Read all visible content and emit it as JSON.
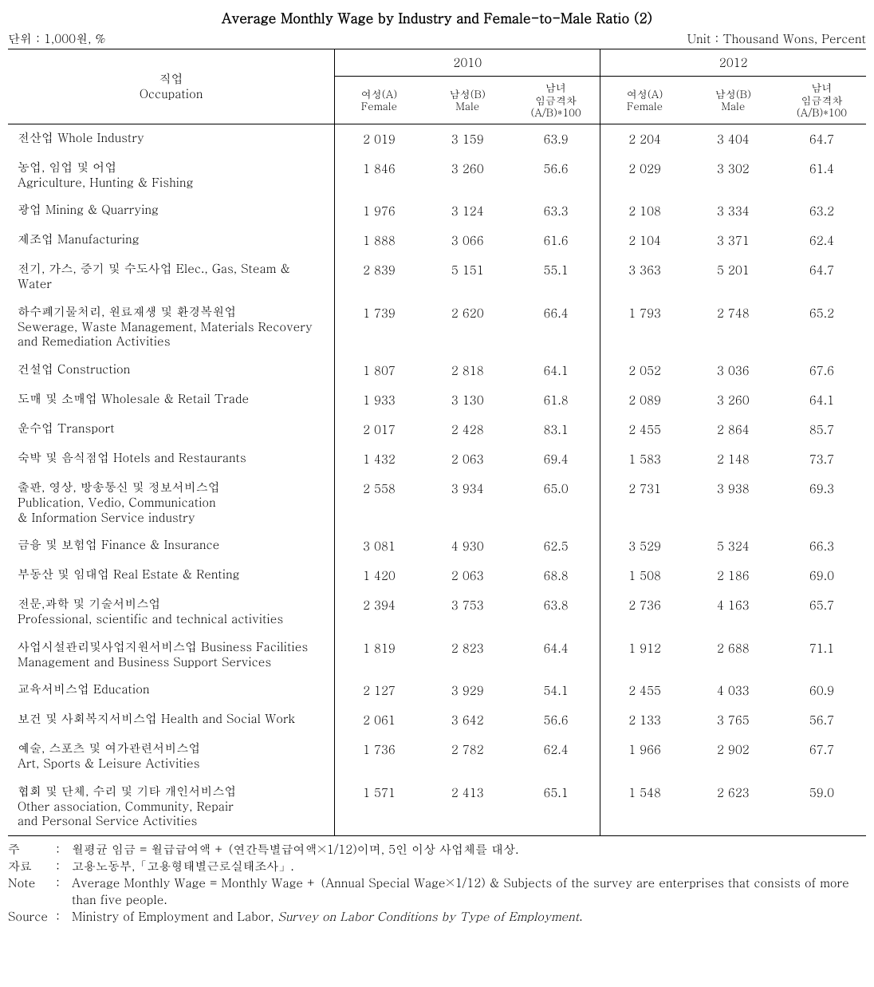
{
  "title": "Average Monthly Wage by Industry and Female-to-Male Ratio (2)",
  "unit_left": "단위 : 1,000원, %",
  "unit_right": "Unit : Thousand Wons, Percent",
  "header": {
    "occupation_ko": "직업",
    "occupation_en": "Occupation",
    "year_2010": "2010",
    "year_2012": "2012",
    "female_ko": "여성(A)",
    "female_en": "Female",
    "male_ko": "남성(B)",
    "male_en": "Male",
    "gap_ko1": "남녀",
    "gap_ko2": "임금격차",
    "gap_formula": "(A/B)*100"
  },
  "rows": [
    {
      "occ": "전산업  Whole Industry",
      "f10": "2 019",
      "m10": "3 159",
      "g10": "63.9",
      "f12": "2 204",
      "m12": "3 404",
      "g12": "64.7"
    },
    {
      "occ": "농업, 임업 및 어업\nAgriculture, Hunting & Fishing",
      "f10": "1 846",
      "m10": "3 260",
      "g10": "56.6",
      "f12": "2 029",
      "m12": "3 302",
      "g12": "61.4"
    },
    {
      "occ": "광업  Mining & Quarrying",
      "f10": "1 976",
      "m10": "3 124",
      "g10": "63.3",
      "f12": "2 108",
      "m12": "3 334",
      "g12": "63.2"
    },
    {
      "occ": "제조업  Manufacturing",
      "f10": "1 888",
      "m10": "3 066",
      "g10": "61.6",
      "f12": "2 104",
      "m12": "3 371",
      "g12": "62.4"
    },
    {
      "occ": "전기, 가스, 증기 및 수도사업 Elec., Gas, Steam & Water",
      "f10": "2 839",
      "m10": "5 151",
      "g10": "55.1",
      "f12": "3 363",
      "m12": "5 201",
      "g12": "64.7"
    },
    {
      "occ": "하수폐기물처리, 원료재생 및 환경복원업\nSewerage, Waste Management, Materials Recovery\nand Remediation Activities",
      "f10": "1 739",
      "m10": "2 620",
      "g10": "66.4",
      "f12": "1 793",
      "m12": "2 748",
      "g12": "65.2"
    },
    {
      "occ": "건설업  Construction",
      "f10": "1 807",
      "m10": "2 818",
      "g10": "64.1",
      "f12": "2 052",
      "m12": "3 036",
      "g12": "67.6"
    },
    {
      "occ": "도매 및 소매업  Wholesale & Retail Trade",
      "f10": "1 933",
      "m10": "3 130",
      "g10": "61.8",
      "f12": "2 089",
      "m12": "3 260",
      "g12": "64.1"
    },
    {
      "occ": "운수업  Transport",
      "f10": "2 017",
      "m10": "2 428",
      "g10": "83.1",
      "f12": "2 455",
      "m12": "2 864",
      "g12": "85.7"
    },
    {
      "occ": "숙박 및 음식점업 Hotels and Restaurants",
      "f10": "1 432",
      "m10": "2 063",
      "g10": "69.4",
      "f12": "1 583",
      "m12": "2 148",
      "g12": "73.7"
    },
    {
      "occ": "출판, 영상, 방송통신 및 정보서비스업\nPublication, Vedio, Communication\n& Information Service industry",
      "f10": "2 558",
      "m10": "3 934",
      "g10": "65.0",
      "f12": "2 731",
      "m12": "3 938",
      "g12": "69.3"
    },
    {
      "occ": "금융 및 보험업  Finance & Insurance",
      "f10": "3 081",
      "m10": "4 930",
      "g10": "62.5",
      "f12": "3 529",
      "m12": "5 324",
      "g12": "66.3"
    },
    {
      "occ": "부동산 및 임대업  Real Estate & Renting",
      "f10": "1 420",
      "m10": "2 063",
      "g10": "68.8",
      "f12": "1 508",
      "m12": "2 186",
      "g12": "69.0"
    },
    {
      "occ": "전문,과학 및 기술서비스업\nProfessional, scientific and technical activities",
      "f10": "2 394",
      "m10": "3 753",
      "g10": "63.8",
      "f12": "2 736",
      "m12": "4 163",
      "g12": "65.7"
    },
    {
      "occ": "사업시설관리및사업지원서비스업  Business  Facilities\nManagement and Business Support Services",
      "f10": "1 819",
      "m10": "2 823",
      "g10": "64.4",
      "f12": "1 912",
      "m12": "2 688",
      "g12": "71.1"
    },
    {
      "occ": "교육서비스업  Education",
      "f10": "2 127",
      "m10": "3 929",
      "g10": "54.1",
      "f12": "2 455",
      "m12": "4 033",
      "g12": "60.9"
    },
    {
      "occ": "보건 및 사회복지서비스업 Health and Social Work",
      "f10": "2 061",
      "m10": "3 642",
      "g10": "56.6",
      "f12": "2 133",
      "m12": "3 765",
      "g12": "56.7"
    },
    {
      "occ": "예술, 스포츠 및 여가관련서비스업\nArt, Sports & Leisure Activities",
      "f10": "1 736",
      "m10": "2 782",
      "g10": "62.4",
      "f12": "1 966",
      "m12": "2 902",
      "g12": "67.7"
    },
    {
      "occ": "협회 및 단체, 수리 및 기타 개인서비스업\nOther association, Community, Repair\nand Personal Service Activities",
      "f10": "1 571",
      "m10": "2 413",
      "g10": "65.1",
      "f12": "1 548",
      "m12": "2 623",
      "g12": "59.0"
    }
  ],
  "footnotes": {
    "ju_label": "주",
    "ju_text": "월평균 임금 = 월급급여액 + (연간특별급여액×1/12)이며, 5인 이상 사업체를 대상.",
    "jaryo_label": "자료",
    "jaryo_text": "고용노동부,「고용형태별근로실태조사」.",
    "note_label": "Note",
    "note_text": "Average Monthly Wage = Monthly Wage + (Annual Special Wage×1/12) & Subjects of the survey are enterprises that consists of more than five people.",
    "source_label": "Source",
    "source_text_pre": "Ministry of Employment and Labor, ",
    "source_text_italic": "Survey on Labor Conditions by Type of Employment",
    "source_text_post": "."
  }
}
